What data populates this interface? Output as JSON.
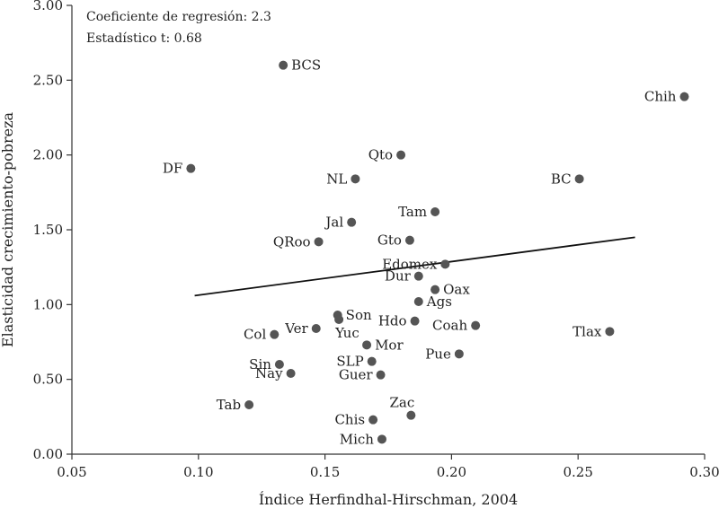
{
  "chart_data": {
    "type": "scatter",
    "title": "",
    "xlabel": "Índice Herfindhal-Hirschman, 2004",
    "ylabel": "Elasticidad crecimiento-pobreza",
    "xlim": [
      0.05,
      0.3
    ],
    "ylim": [
      0.0,
      3.0
    ],
    "x_ticks": [
      0.05,
      0.1,
      0.15,
      0.2,
      0.25,
      0.3
    ],
    "x_tick_labels": [
      "0.05",
      "0.10",
      "0.15",
      "0.20",
      "0.25",
      "0.30"
    ],
    "y_ticks": [
      0.0,
      0.5,
      1.0,
      1.5,
      2.0,
      2.5,
      3.0
    ],
    "y_tick_labels": [
      "0.00",
      "0.50",
      "1.00",
      "1.50",
      "2.00",
      "2.50",
      "3.00"
    ],
    "grid": false,
    "annotations": [
      "Coeficiente de regresión: 2.3",
      "Estadístico t: 0.68"
    ],
    "regression_line": {
      "x": [
        0.0985,
        0.2725
      ],
      "y": [
        1.06,
        1.45
      ]
    },
    "points": [
      {
        "label": "BCS",
        "x": 0.1335,
        "y": 2.6,
        "label_pos": "right"
      },
      {
        "label": "Chih",
        "x": 0.292,
        "y": 2.39,
        "label_pos": "left"
      },
      {
        "label": "Qto",
        "x": 0.18,
        "y": 2.0,
        "label_pos": "left"
      },
      {
        "label": "DF",
        "x": 0.097,
        "y": 1.91,
        "label_pos": "left"
      },
      {
        "label": "NL",
        "x": 0.162,
        "y": 1.84,
        "label_pos": "left"
      },
      {
        "label": "BC",
        "x": 0.2505,
        "y": 1.84,
        "label_pos": "left"
      },
      {
        "label": "Tam",
        "x": 0.1935,
        "y": 1.62,
        "label_pos": "left"
      },
      {
        "label": "Jal",
        "x": 0.1605,
        "y": 1.55,
        "label_pos": "left"
      },
      {
        "label": "QRoo",
        "x": 0.1475,
        "y": 1.42,
        "label_pos": "left"
      },
      {
        "label": "Gto",
        "x": 0.1835,
        "y": 1.43,
        "label_pos": "left"
      },
      {
        "label": "Edomex",
        "x": 0.1975,
        "y": 1.27,
        "label_pos": "left"
      },
      {
        "label": "Dur",
        "x": 0.187,
        "y": 1.19,
        "label_pos": "left"
      },
      {
        "label": "Oax",
        "x": 0.1935,
        "y": 1.1,
        "label_pos": "right"
      },
      {
        "label": "Ags",
        "x": 0.187,
        "y": 1.02,
        "label_pos": "right"
      },
      {
        "label": "Son",
        "x": 0.155,
        "y": 0.93,
        "label_pos": "right"
      },
      {
        "label": "Yuc",
        "x": 0.1555,
        "y": 0.9,
        "label_pos": "below-right"
      },
      {
        "label": "Hdo",
        "x": 0.1855,
        "y": 0.89,
        "label_pos": "left"
      },
      {
        "label": "Coah",
        "x": 0.2095,
        "y": 0.86,
        "label_pos": "left"
      },
      {
        "label": "Ver",
        "x": 0.1465,
        "y": 0.84,
        "label_pos": "left"
      },
      {
        "label": "Tlax",
        "x": 0.2625,
        "y": 0.82,
        "label_pos": "left"
      },
      {
        "label": "Col",
        "x": 0.13,
        "y": 0.8,
        "label_pos": "left"
      },
      {
        "label": "Mor",
        "x": 0.1665,
        "y": 0.73,
        "label_pos": "right"
      },
      {
        "label": "Pue",
        "x": 0.203,
        "y": 0.67,
        "label_pos": "left"
      },
      {
        "label": "SLP",
        "x": 0.1685,
        "y": 0.62,
        "label_pos": "left"
      },
      {
        "label": "Sin",
        "x": 0.132,
        "y": 0.6,
        "label_pos": "left"
      },
      {
        "label": "Nay",
        "x": 0.1365,
        "y": 0.54,
        "label_pos": "left"
      },
      {
        "label": "Guer",
        "x": 0.172,
        "y": 0.53,
        "label_pos": "left"
      },
      {
        "label": "Tab",
        "x": 0.12,
        "y": 0.33,
        "label_pos": "left"
      },
      {
        "label": "Zac",
        "x": 0.184,
        "y": 0.26,
        "label_pos": "above"
      },
      {
        "label": "Chis",
        "x": 0.169,
        "y": 0.23,
        "label_pos": "left"
      },
      {
        "label": "Mich",
        "x": 0.1725,
        "y": 0.1,
        "label_pos": "left"
      }
    ]
  }
}
